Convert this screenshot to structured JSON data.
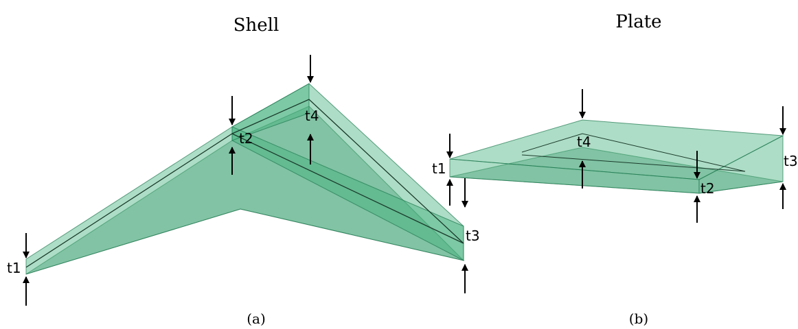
{
  "panels": [
    {
      "title": "Shell",
      "caption": "(a)",
      "labels": [
        "t1",
        "t2",
        "t3",
        "t4"
      ]
    },
    {
      "title": "Plate",
      "caption": "(b)",
      "labels": [
        "t1",
        "t2",
        "t3",
        "t4"
      ]
    }
  ]
}
